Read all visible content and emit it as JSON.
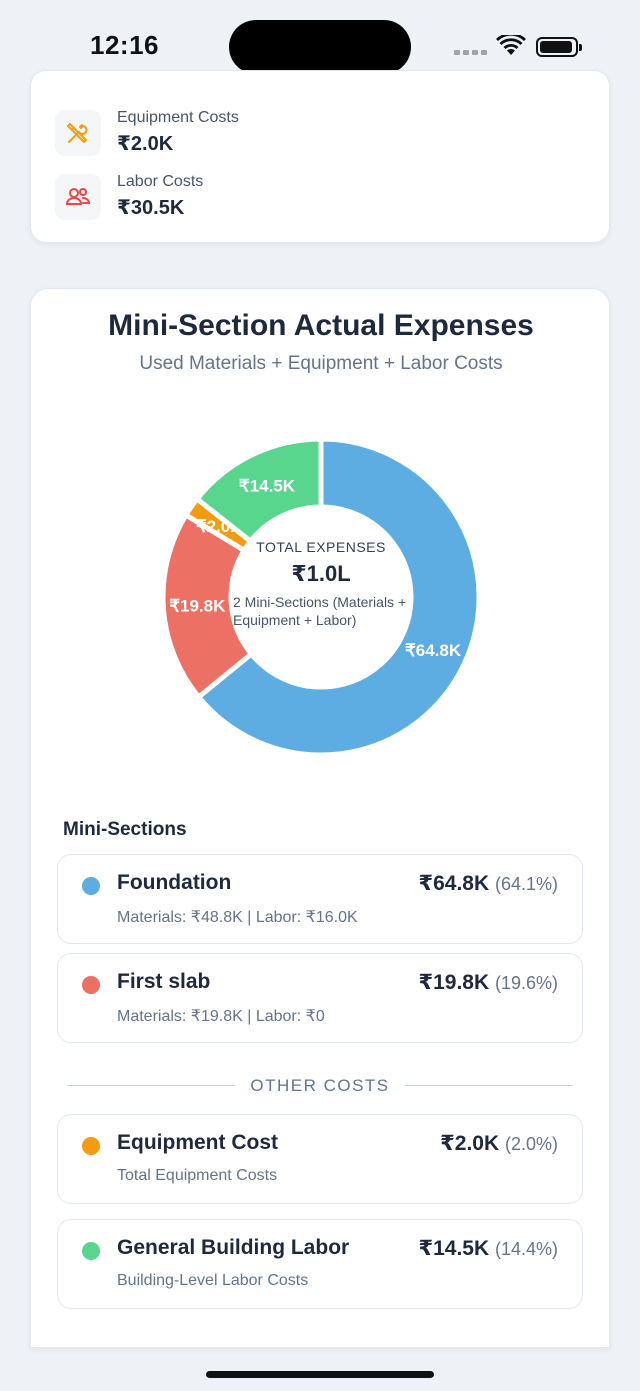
{
  "status_bar": {
    "time": "12:16"
  },
  "summary": {
    "items": [
      {
        "label": "Equipment Costs",
        "value": "₹2.0K",
        "icon": "tools-icon",
        "color": "#f59e0b"
      },
      {
        "label": "Labor Costs",
        "value": "₹30.5K",
        "icon": "users-icon",
        "color": "#ef4444"
      }
    ]
  },
  "chart_card": {
    "title": "Mini-Section Actual Expenses",
    "subtitle": "Used Materials + Equipment + Labor Costs",
    "center": {
      "label": "TOTAL EXPENSES",
      "value": "₹1.0L",
      "note": "2 Mini-Sections (Materials + Equipment + Labor)"
    }
  },
  "chart_data": {
    "type": "pie",
    "variant": "donut",
    "total_label": "₹1.0L",
    "series": [
      {
        "name": "Foundation",
        "value": 64.8,
        "label": "₹64.8K",
        "color": "#5dade2"
      },
      {
        "name": "First slab",
        "value": 19.8,
        "label": "₹19.8K",
        "color": "#ec7063"
      },
      {
        "name": "Equipment Cost",
        "value": 2.0,
        "label": "₹2.0K",
        "color": "#f39c12"
      },
      {
        "name": "General Building Labor",
        "value": 14.5,
        "label": "₹14.5K",
        "color": "#58d68d"
      }
    ]
  },
  "mini_sections": {
    "heading": "Mini-Sections",
    "items": [
      {
        "name": "Foundation",
        "amount": "₹64.8K",
        "percent": "(64.1%)",
        "detail": "Materials: ₹48.8K | Labor: ₹16.0K",
        "color": "#5dade2"
      },
      {
        "name": "First slab",
        "amount": "₹19.8K",
        "percent": "(19.6%)",
        "detail": "Materials: ₹19.8K | Labor: ₹0",
        "color": "#ec7063"
      }
    ]
  },
  "other_costs": {
    "heading": "OTHER COSTS",
    "items": [
      {
        "name": "Equipment Cost",
        "amount": "₹2.0K",
        "percent": "(2.0%)",
        "detail": "Total Equipment Costs",
        "color": "#f39c12"
      },
      {
        "name": "General Building Labor",
        "amount": "₹14.5K",
        "percent": "(14.4%)",
        "detail": "Building-Level Labor Costs",
        "color": "#58d68d"
      }
    ]
  }
}
